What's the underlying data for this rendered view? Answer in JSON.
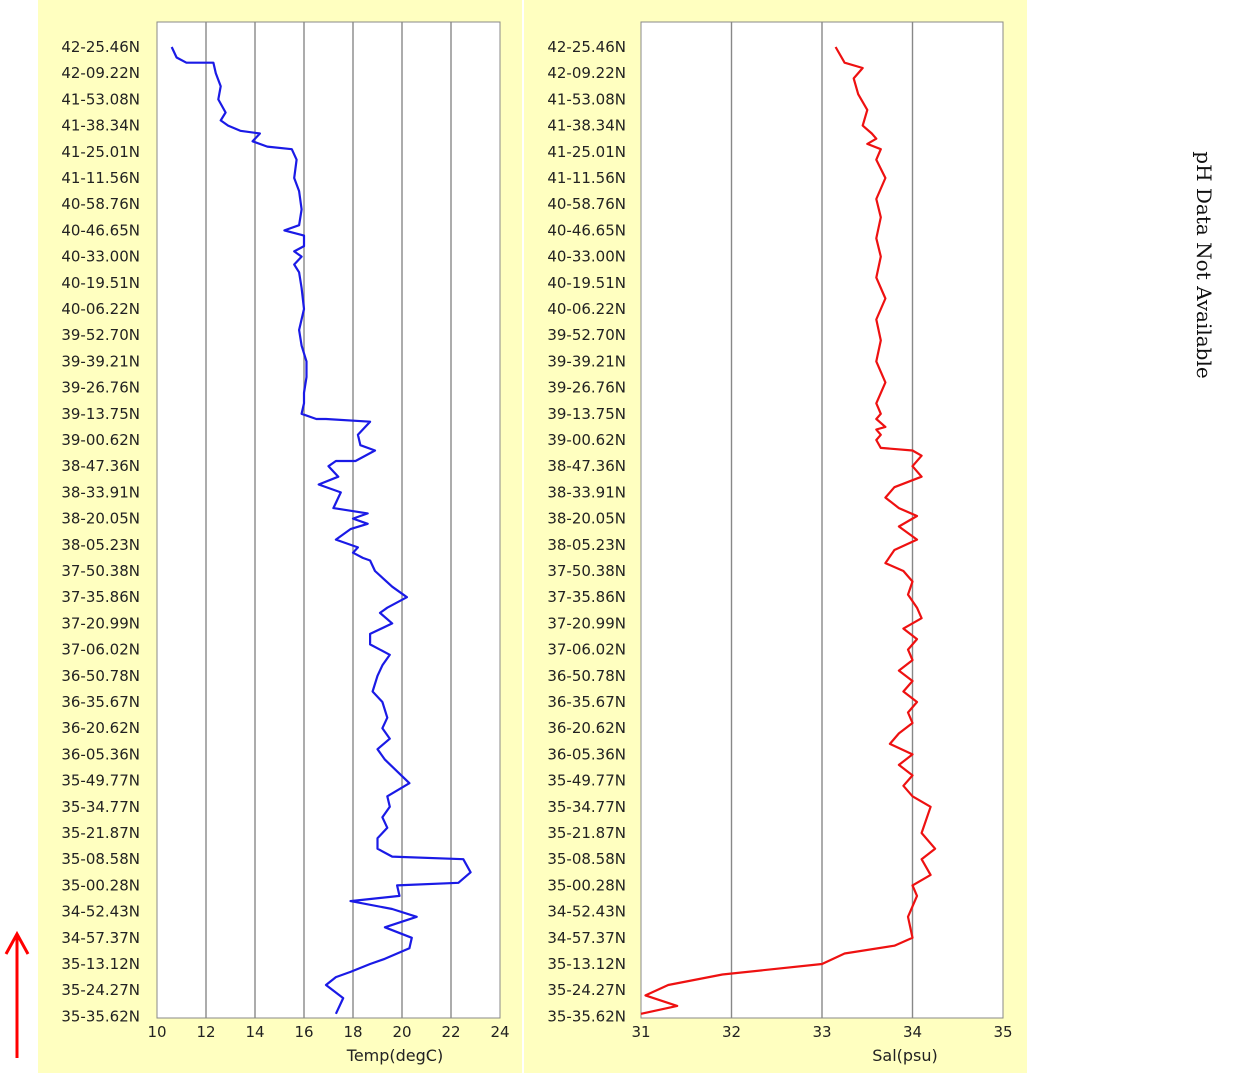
{
  "side_note": "pH Data Not Available",
  "chart_data": [
    {
      "type": "line",
      "xlabel": "Temp(degC)",
      "ylabel": "",
      "xlim": [
        10,
        24
      ],
      "xticks": [
        "10",
        "12",
        "14",
        "16",
        "18",
        "20",
        "22",
        "24"
      ],
      "grid": "vertical",
      "series_color": "#1a1ae6",
      "ytick_labels": [
        "42-25.46N",
        "42-09.22N",
        "41-53.08N",
        "41-38.34N",
        "41-25.01N",
        "41-11.56N",
        "40-58.76N",
        "40-46.65N",
        "40-33.00N",
        "40-19.51N",
        "40-06.22N",
        "39-52.70N",
        "39-39.21N",
        "39-26.76N",
        "39-13.75N",
        "39-00.62N",
        "38-47.36N",
        "38-33.91N",
        "38-20.05N",
        "38-05.23N",
        "37-50.38N",
        "37-35.86N",
        "37-20.99N",
        "37-06.02N",
        "36-50.78N",
        "36-35.67N",
        "36-20.62N",
        "36-05.36N",
        "35-49.77N",
        "35-34.77N",
        "35-21.87N",
        "35-08.58N",
        "35-00.28N",
        "34-52.43N",
        "34-57.37N",
        "35-13.12N",
        "35-24.27N",
        "35-35.62N"
      ],
      "series": [
        {
          "name": "",
          "x": [
            10.6,
            10.8,
            11.2,
            12.3,
            12.4,
            12.6,
            12.5,
            12.8,
            12.6,
            12.9,
            13.4,
            14.2,
            13.9,
            14.5,
            15.5,
            15.7,
            15.6,
            15.8,
            15.9,
            15.8,
            15.2,
            16.0,
            16.0,
            15.6,
            15.9,
            15.6,
            15.8,
            15.9,
            16.0,
            15.8,
            15.9,
            16.1,
            16.1,
            16.0,
            16.0,
            15.9,
            16.5,
            16.9,
            18.7,
            18.2,
            18.3,
            18.9,
            18.1,
            17.3,
            17.0,
            17.4,
            16.6,
            17.5,
            17.2,
            18.6,
            18.0,
            18.6,
            17.9,
            17.3,
            18.2,
            18.0,
            18.4,
            18.7,
            18.9,
            19.6,
            20.2,
            19.4,
            19.1,
            19.6,
            18.7,
            18.7,
            19.5,
            19.2,
            19.0,
            18.8,
            19.2,
            19.4,
            19.2,
            19.5,
            19.0,
            19.3,
            20.3,
            19.4,
            19.5,
            19.2,
            19.4,
            19.0,
            19.0,
            19.6,
            22.5,
            22.8,
            22.3,
            19.8,
            19.9,
            17.9,
            19.6,
            20.6,
            19.3,
            20.4,
            20.3,
            19.3,
            18.7,
            17.9,
            17.3,
            16.9,
            17.6,
            17.3
          ],
          "y": [
            0.0,
            0.4,
            0.6,
            0.6,
            1.0,
            1.5,
            2.0,
            2.5,
            2.8,
            3.0,
            3.2,
            3.3,
            3.6,
            3.8,
            3.9,
            4.3,
            5.0,
            5.5,
            6.2,
            6.8,
            7.0,
            7.2,
            7.6,
            7.8,
            8.0,
            8.3,
            8.6,
            9.2,
            10.0,
            10.8,
            11.4,
            12.0,
            12.6,
            13.2,
            13.6,
            14.0,
            14.2,
            14.2,
            14.3,
            14.8,
            15.2,
            15.4,
            15.8,
            15.8,
            16.0,
            16.4,
            16.7,
            17.0,
            17.6,
            17.8,
            18.0,
            18.2,
            18.4,
            18.8,
            19.1,
            19.3,
            19.5,
            19.6,
            20.0,
            20.6,
            21.0,
            21.4,
            21.6,
            22.0,
            22.4,
            22.8,
            23.2,
            23.6,
            24.0,
            24.6,
            25.0,
            25.6,
            26.0,
            26.4,
            26.8,
            27.2,
            28.1,
            28.6,
            29.0,
            29.4,
            29.8,
            30.2,
            30.6,
            30.9,
            31.0,
            31.5,
            31.9,
            32.0,
            32.4,
            32.6,
            32.9,
            33.2,
            33.6,
            34.0,
            34.4,
            34.8,
            35.0,
            35.3,
            35.5,
            35.8,
            36.3,
            36.9
          ]
        }
      ]
    },
    {
      "type": "line",
      "xlabel": "Sal(psu)",
      "ylabel": "",
      "xlim": [
        31,
        35
      ],
      "xticks": [
        "31",
        "32",
        "33",
        "34",
        "35"
      ],
      "grid": "vertical",
      "series_color": "#ee1111",
      "ytick_labels": [
        "42-25.46N",
        "42-09.22N",
        "41-53.08N",
        "41-38.34N",
        "41-25.01N",
        "41-11.56N",
        "40-58.76N",
        "40-46.65N",
        "40-33.00N",
        "40-19.51N",
        "40-06.22N",
        "39-52.70N",
        "39-39.21N",
        "39-26.76N",
        "39-13.75N",
        "39-00.62N",
        "38-47.36N",
        "38-33.91N",
        "38-20.05N",
        "38-05.23N",
        "37-50.38N",
        "37-35.86N",
        "37-20.99N",
        "37-06.02N",
        "36-50.78N",
        "36-35.67N",
        "36-20.62N",
        "36-05.36N",
        "35-49.77N",
        "35-34.77N",
        "35-21.87N",
        "35-08.58N",
        "35-00.28N",
        "34-52.43N",
        "34-57.37N",
        "35-13.12N",
        "35-24.27N",
        "35-35.62N"
      ],
      "series": [
        {
          "name": "",
          "x": [
            33.15,
            33.25,
            33.45,
            33.35,
            33.4,
            33.5,
            33.45,
            33.55,
            33.6,
            33.5,
            33.65,
            33.6,
            33.7,
            33.6,
            33.65,
            33.6,
            33.65,
            33.6,
            33.7,
            33.6,
            33.65,
            33.6,
            33.7,
            33.6,
            33.65,
            33.6,
            33.7,
            33.6,
            33.65,
            33.6,
            33.65,
            34.0,
            34.1,
            34.0,
            34.1,
            33.8,
            33.7,
            33.85,
            34.05,
            33.85,
            34.05,
            33.8,
            33.7,
            33.9,
            34.0,
            33.95,
            34.05,
            34.1,
            33.9,
            34.05,
            33.95,
            34.0,
            33.85,
            34.0,
            33.9,
            34.05,
            33.95,
            34.0,
            33.85,
            33.75,
            34.0,
            33.85,
            34.0,
            33.9,
            34.0,
            34.2,
            34.1,
            34.25,
            34.1,
            34.2,
            34.0,
            34.05,
            33.95,
            34.0,
            33.8,
            33.25,
            33.0,
            31.9,
            31.3,
            31.05,
            31.4,
            31.0
          ],
          "y": [
            0.0,
            0.6,
            0.8,
            1.2,
            1.8,
            2.4,
            3.0,
            3.3,
            3.5,
            3.7,
            3.9,
            4.3,
            5.0,
            5.8,
            6.5,
            7.3,
            8.0,
            8.8,
            9.6,
            10.4,
            11.2,
            12.0,
            12.8,
            13.6,
            14.0,
            14.2,
            14.5,
            14.6,
            14.8,
            15.0,
            15.3,
            15.4,
            15.6,
            16.0,
            16.4,
            16.8,
            17.2,
            17.6,
            17.9,
            18.3,
            18.8,
            19.2,
            19.7,
            20.0,
            20.4,
            20.9,
            21.4,
            21.8,
            22.2,
            22.6,
            23.0,
            23.4,
            23.8,
            24.2,
            24.6,
            25.0,
            25.4,
            25.8,
            26.2,
            26.6,
            27.0,
            27.4,
            27.8,
            28.2,
            28.6,
            29.0,
            30.0,
            30.6,
            31.0,
            31.6,
            32.0,
            32.4,
            33.2,
            34.0,
            34.3,
            34.6,
            35.0,
            35.4,
            35.8,
            36.2,
            36.6,
            36.9
          ]
        }
      ]
    }
  ]
}
